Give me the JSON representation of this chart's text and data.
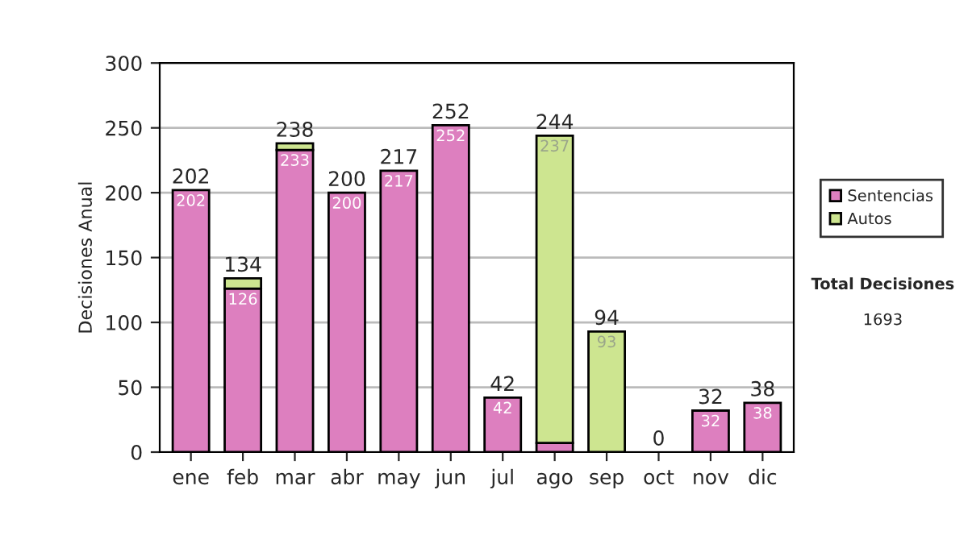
{
  "chart_data": {
    "type": "bar",
    "stacked": true,
    "ylabel": "Decisiones Anual",
    "categories": [
      "ene",
      "feb",
      "mar",
      "abr",
      "may",
      "jun",
      "jul",
      "ago",
      "sep",
      "oct",
      "nov",
      "dic"
    ],
    "series": [
      {
        "name": "Sentencias",
        "color": "#dd7fbf",
        "values": [
          202,
          126,
          233,
          200,
          217,
          252,
          42,
          7,
          null,
          0,
          32,
          38
        ],
        "value_labels": [
          "202",
          "126",
          "233",
          "200",
          "217",
          "252",
          "42",
          null,
          null,
          null,
          "32",
          "38"
        ]
      },
      {
        "name": "Autos",
        "color": "#cde590",
        "values": [
          0,
          8,
          5,
          0,
          0,
          0,
          0,
          237,
          93,
          0,
          0,
          0
        ],
        "value_labels": [
          null,
          null,
          null,
          null,
          null,
          null,
          null,
          "237",
          "93",
          null,
          null,
          null
        ]
      }
    ],
    "totals": [
      "202",
      "134",
      "238",
      "200",
      "217",
      "252",
      "42",
      "244",
      "94",
      "0",
      "32",
      "38"
    ],
    "ylim": [
      0,
      300
    ],
    "yticks": [
      0,
      50,
      100,
      150,
      200,
      250,
      300
    ],
    "grid": "y",
    "legend": "right",
    "annotations": [
      "Total Decisiones",
      "1693"
    ]
  }
}
